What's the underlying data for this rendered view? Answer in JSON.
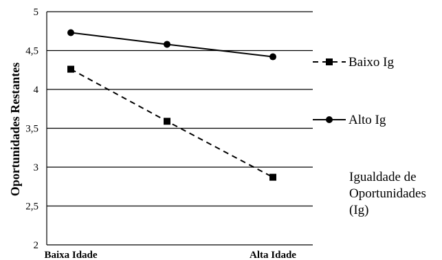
{
  "chart_data": {
    "type": "line",
    "title": "",
    "xlabel": "",
    "ylabel": "Oportunidades Restantes",
    "categories": [
      "Baixa Idade",
      "",
      "Alta Idade"
    ],
    "ylim": [
      2,
      5
    ],
    "yticks": [
      "2",
      "2,5",
      "3",
      "3,5",
      "4",
      "4,5",
      "5"
    ],
    "grid": true,
    "legend_position": "right",
    "series": [
      {
        "name": "Baixo Ig",
        "values": [
          4.26,
          3.59,
          2.87
        ],
        "line_style": "dashed",
        "marker": "square",
        "color": "#000000"
      },
      {
        "name": "Alto Ig",
        "values": [
          4.73,
          4.58,
          4.42
        ],
        "line_style": "solid",
        "marker": "circle",
        "color": "#000000"
      }
    ]
  },
  "legend_title": [
    "Igualdade de",
    "Oportunidades",
    "(Ig)"
  ]
}
